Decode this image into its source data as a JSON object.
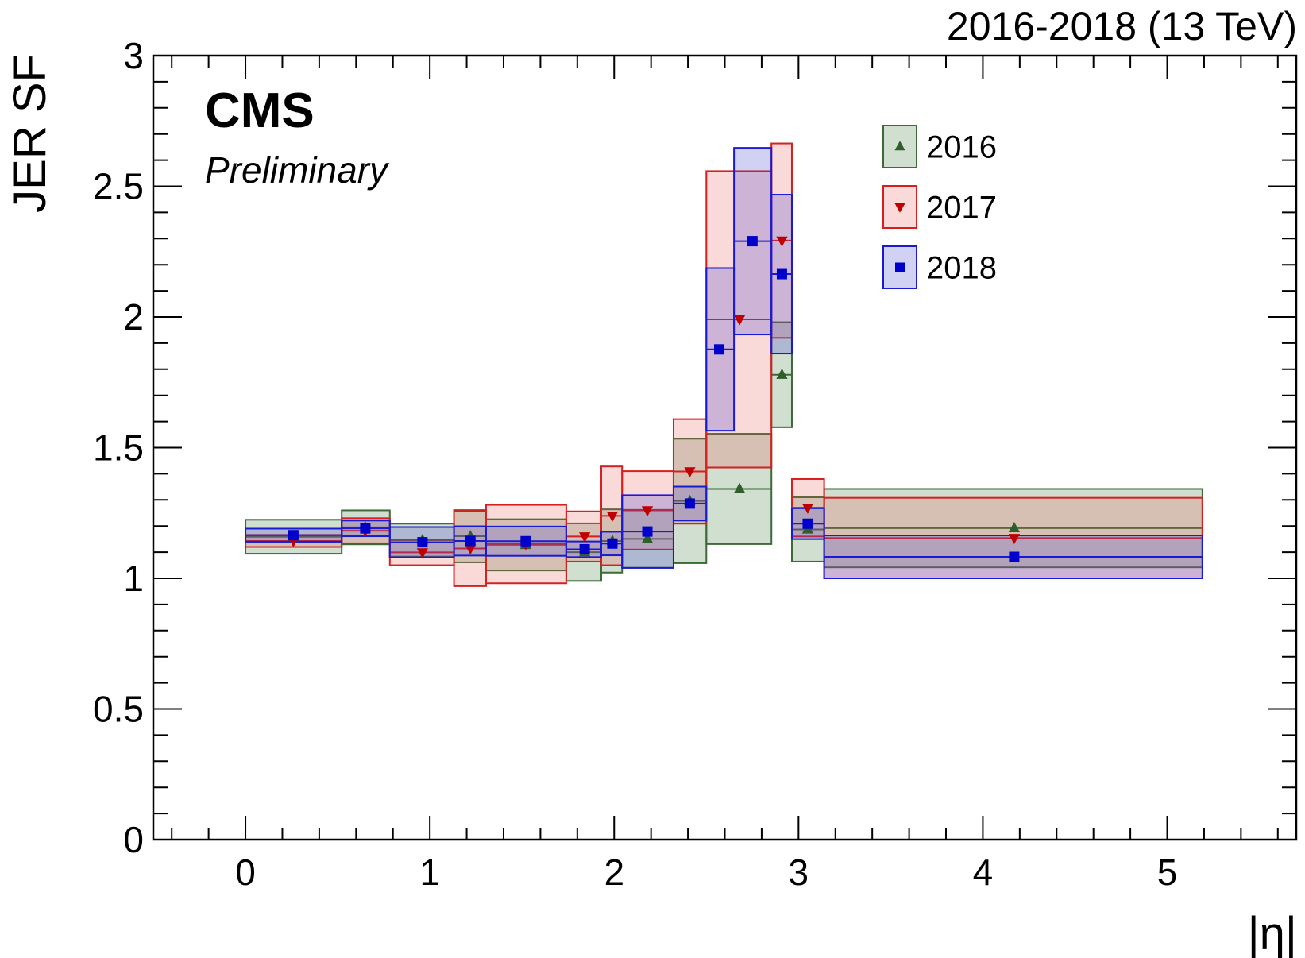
{
  "header": {
    "lumi_text": "2016-2018 (13 TeV)",
    "experiment": "CMS",
    "status": "Preliminary"
  },
  "chart_data": {
    "type": "scatter",
    "xlabel": "|η|",
    "ylabel": "JER SF",
    "xlim": [
      -0.5,
      5.7
    ],
    "ylim": [
      0,
      3
    ],
    "x_ticks": [
      "0",
      "1",
      "2",
      "3",
      "4",
      "5"
    ],
    "y_ticks": [
      "0",
      "0.5",
      "1",
      "1.5",
      "2",
      "2.5",
      "3"
    ],
    "grid": false,
    "legend_position": "top-right",
    "series": [
      {
        "name": "2016",
        "marker": "triangle-up",
        "color": "#2e5e2a",
        "fill": "rgba(46,110,40,0.22)",
        "stroke": "#3d6b38",
        "bins": [
          {
            "x0": 0.0,
            "x1": 0.522,
            "x": 0.26,
            "y": 1.159,
            "lo": 1.094,
            "hi": 1.224
          },
          {
            "x0": 0.522,
            "x1": 0.783,
            "x": 0.65,
            "y": 1.195,
            "lo": 1.13,
            "hi": 1.26
          },
          {
            "x0": 0.783,
            "x1": 1.131,
            "x": 0.96,
            "y": 1.146,
            "lo": 1.083,
            "hi": 1.209
          },
          {
            "x0": 1.131,
            "x1": 1.305,
            "x": 1.22,
            "y": 1.161,
            "lo": 1.061,
            "hi": 1.261
          },
          {
            "x0": 1.305,
            "x1": 1.74,
            "x": 1.52,
            "y": 1.128,
            "lo": 1.03,
            "hi": 1.226
          },
          {
            "x0": 1.74,
            "x1": 1.93,
            "x": 1.84,
            "y": 1.1,
            "lo": 0.99,
            "hi": 1.21
          },
          {
            "x0": 1.93,
            "x1": 2.043,
            "x": 1.99,
            "y": 1.143,
            "lo": 1.022,
            "hi": 1.264
          },
          {
            "x0": 2.043,
            "x1": 2.322,
            "x": 2.18,
            "y": 1.151,
            "lo": 1.04,
            "hi": 1.262
          },
          {
            "x0": 2.322,
            "x1": 2.5,
            "x": 2.41,
            "y": 1.296,
            "lo": 1.058,
            "hi": 1.534
          },
          {
            "x0": 2.5,
            "x1": 2.853,
            "x": 2.68,
            "y": 1.342,
            "lo": 1.131,
            "hi": 1.553
          },
          {
            "x0": 2.853,
            "x1": 2.964,
            "x": 2.91,
            "y": 1.779,
            "lo": 1.578,
            "hi": 1.98
          },
          {
            "x0": 2.964,
            "x1": 3.139,
            "x": 3.05,
            "y": 1.187,
            "lo": 1.064,
            "hi": 1.31
          },
          {
            "x0": 3.139,
            "x1": 5.191,
            "x": 4.17,
            "y": 1.192,
            "lo": 1.042,
            "hi": 1.342
          }
        ]
      },
      {
        "name": "2017",
        "marker": "triangle-down",
        "color": "#c00000",
        "fill": "rgba(230,80,80,0.22)",
        "stroke": "#d42020",
        "bins": [
          {
            "x0": 0.0,
            "x1": 0.522,
            "x": 0.26,
            "y": 1.143,
            "lo": 1.12,
            "hi": 1.166
          },
          {
            "x0": 0.522,
            "x1": 0.783,
            "x": 0.65,
            "y": 1.182,
            "lo": 1.134,
            "hi": 1.23
          },
          {
            "x0": 0.783,
            "x1": 1.131,
            "x": 0.96,
            "y": 1.099,
            "lo": 1.05,
            "hi": 1.148
          },
          {
            "x0": 1.131,
            "x1": 1.305,
            "x": 1.22,
            "y": 1.114,
            "lo": 0.97,
            "hi": 1.258
          },
          {
            "x0": 1.305,
            "x1": 1.74,
            "x": 1.52,
            "y": 1.131,
            "lo": 0.981,
            "hi": 1.281
          },
          {
            "x0": 1.74,
            "x1": 1.93,
            "x": 1.84,
            "y": 1.16,
            "lo": 1.064,
            "hi": 1.256
          },
          {
            "x0": 1.93,
            "x1": 2.043,
            "x": 1.99,
            "y": 1.239,
            "lo": 1.05,
            "hi": 1.428
          },
          {
            "x0": 2.043,
            "x1": 2.322,
            "x": 2.18,
            "y": 1.26,
            "lo": 1.11,
            "hi": 1.41
          },
          {
            "x0": 2.322,
            "x1": 2.5,
            "x": 2.41,
            "y": 1.409,
            "lo": 1.209,
            "hi": 1.609
          },
          {
            "x0": 2.5,
            "x1": 2.853,
            "x": 2.68,
            "y": 1.991,
            "lo": 1.424,
            "hi": 2.558
          },
          {
            "x0": 2.853,
            "x1": 2.964,
            "x": 2.91,
            "y": 2.292,
            "lo": 1.92,
            "hi": 2.664
          },
          {
            "x0": 2.964,
            "x1": 3.139,
            "x": 3.05,
            "y": 1.27,
            "lo": 1.16,
            "hi": 1.38
          },
          {
            "x0": 3.139,
            "x1": 5.191,
            "x": 4.17,
            "y": 1.154,
            "lo": 1.0,
            "hi": 1.308
          }
        ]
      },
      {
        "name": "2018",
        "marker": "square",
        "color": "#0000cc",
        "fill": "rgba(70,70,210,0.25)",
        "stroke": "#1a1ad0",
        "bins": [
          {
            "x0": 0.0,
            "x1": 0.522,
            "x": 0.26,
            "y": 1.165,
            "lo": 1.14,
            "hi": 1.19
          },
          {
            "x0": 0.522,
            "x1": 0.783,
            "x": 0.65,
            "y": 1.191,
            "lo": 1.161,
            "hi": 1.221
          },
          {
            "x0": 0.783,
            "x1": 1.131,
            "x": 0.96,
            "y": 1.138,
            "lo": 1.08,
            "hi": 1.196
          },
          {
            "x0": 1.131,
            "x1": 1.305,
            "x": 1.22,
            "y": 1.143,
            "lo": 1.087,
            "hi": 1.199
          },
          {
            "x0": 1.305,
            "x1": 1.74,
            "x": 1.52,
            "y": 1.142,
            "lo": 1.086,
            "hi": 1.198
          },
          {
            "x0": 1.74,
            "x1": 1.93,
            "x": 1.84,
            "y": 1.111,
            "lo": 1.081,
            "hi": 1.141
          },
          {
            "x0": 1.93,
            "x1": 2.043,
            "x": 1.99,
            "y": 1.133,
            "lo": 1.088,
            "hi": 1.178
          },
          {
            "x0": 2.043,
            "x1": 2.322,
            "x": 2.18,
            "y": 1.179,
            "lo": 1.04,
            "hi": 1.318
          },
          {
            "x0": 2.322,
            "x1": 2.5,
            "x": 2.41,
            "y": 1.286,
            "lo": 1.221,
            "hi": 1.351
          },
          {
            "x0": 2.5,
            "x1": 2.65,
            "x": 2.57,
            "y": 1.876,
            "lo": 1.565,
            "hi": 2.187
          },
          {
            "x0": 2.65,
            "x1": 2.853,
            "x": 2.75,
            "y": 2.29,
            "lo": 1.933,
            "hi": 2.647
          },
          {
            "x0": 2.853,
            "x1": 2.964,
            "x": 2.91,
            "y": 2.164,
            "lo": 1.86,
            "hi": 2.468
          },
          {
            "x0": 2.964,
            "x1": 3.139,
            "x": 3.05,
            "y": 1.209,
            "lo": 1.15,
            "hi": 1.268
          },
          {
            "x0": 3.139,
            "x1": 5.191,
            "x": 4.17,
            "y": 1.082,
            "lo": 1.0,
            "hi": 1.164
          }
        ]
      }
    ]
  }
}
